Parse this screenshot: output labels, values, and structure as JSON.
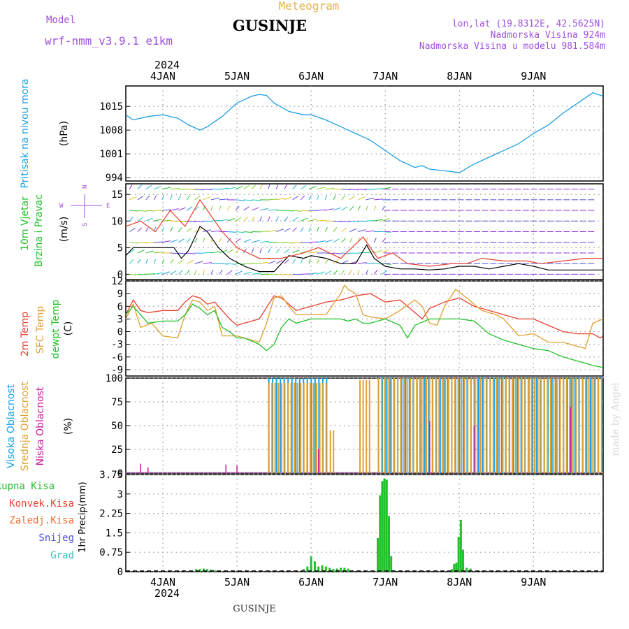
{
  "header": {
    "title": "GUSINJE",
    "meteogram_label": "Meteogram",
    "model_label": "Model",
    "model_name": "wrf-nmm_v3.9.1 e1km",
    "location_line": "lon,lat (19.8312E, 42.5625N)",
    "elevation_line": "Nadmorska Visina 924m",
    "model_elevation_line": "Nadmorska Visina u modelu 981.584m",
    "footer_title": "GUSINJE",
    "watermark": "made by Angel"
  },
  "colors": {
    "pressure": "#1f9fe6",
    "wind_speed": "#000000",
    "gust": "#e8402f",
    "temp2m": "#e8402f",
    "sfc_temp": "#e0a030",
    "dewpoint": "#22c02a",
    "high_cloud": "#1aa0e6",
    "mid_cloud": "#e0a030",
    "low_cloud": "#d01aa0",
    "precip": "#22c02a",
    "label_purple": "#a050e0",
    "label_orange": "#e8b050"
  },
  "chart_data": [
    {
      "panel": "pressure",
      "type": "line",
      "ylabel": "Pritisak na nivou mora",
      "unit": "(hPa)",
      "yticks": [
        994,
        1001,
        1008,
        1015
      ],
      "ylim": [
        993,
        1021
      ],
      "x_unit": "days since 4JAN 00h",
      "x": [
        -0.5,
        -0.4,
        -0.2,
        0,
        0.2,
        0.35,
        0.5,
        0.6,
        0.8,
        1,
        1.2,
        1.3,
        1.4,
        1.5,
        1.7,
        1.9,
        2,
        2.2,
        2.4,
        2.6,
        2.8,
        3,
        3.2,
        3.4,
        3.5,
        3.6,
        3.8,
        4,
        4.2,
        4.4,
        4.6,
        4.8,
        5,
        5.2,
        5.4,
        5.6,
        5.8,
        5.94
      ],
      "y": [
        1012.5,
        1011,
        1012,
        1012.5,
        1011.5,
        1009.5,
        1008,
        1009,
        1012,
        1016,
        1018,
        1018.5,
        1018.2,
        1016,
        1013.5,
        1012.5,
        1012.5,
        1011,
        1009,
        1007,
        1005,
        1002,
        999,
        997,
        997.5,
        996.5,
        996,
        995.5,
        998,
        1000,
        1002,
        1004,
        1007,
        1009.5,
        1013,
        1016,
        1019,
        1018
      ]
    },
    {
      "panel": "wind",
      "type": "line",
      "ylabel": "10m Vjetar Brzina i Pravac",
      "unit": "(m/s)",
      "compass_labels": [
        "N",
        "W",
        "E",
        "S"
      ],
      "yticks": [
        0,
        5,
        10,
        15
      ],
      "ylim": [
        -1,
        17
      ],
      "series": [
        {
          "x": [
            -0.5,
            -0.4,
            -0.3,
            -0.15,
            0,
            0.15,
            0.25,
            0.35,
            0.5,
            0.6,
            0.75,
            0.9,
            1.1,
            1.3,
            1.5,
            1.7,
            1.9,
            2.0,
            2.2,
            2.4,
            2.6,
            2.75,
            2.85,
            3.0,
            3.2,
            3.4,
            3.6,
            3.8,
            4.0,
            4.2,
            4.4,
            4.6,
            4.8,
            5.0,
            5.2,
            5.4,
            5.6,
            5.8,
            5.94
          ],
          "y": [
            3.5,
            5,
            5,
            5,
            5,
            5,
            3,
            4.5,
            9,
            8,
            5,
            3,
            1.5,
            0.5,
            0.5,
            3.5,
            3,
            3.5,
            3,
            2,
            2,
            5.5,
            3,
            1.5,
            1,
            1,
            0.8,
            1,
            1.5,
            1.5,
            1,
            1.5,
            2,
            1.5,
            0.8,
            0.8,
            0.8,
            0.8,
            0.8
          ]
        },
        {
          "x": [
            -0.5,
            -0.3,
            -0.1,
            0.1,
            0.3,
            0.5,
            0.6,
            0.8,
            1.0,
            1.3,
            1.6,
            1.9,
            2.1,
            2.4,
            2.7,
            2.9,
            3.1,
            3.3,
            3.6,
            3.9,
            4.1,
            4.3,
            4.6,
            4.9,
            5.1,
            5.4,
            5.7,
            5.94
          ],
          "y": [
            9,
            10,
            8,
            12,
            9,
            14,
            12,
            8,
            5,
            3,
            3,
            4,
            5,
            3,
            7,
            3,
            4,
            2,
            1.5,
            2,
            2,
            3,
            2.5,
            2.5,
            2,
            2.5,
            3,
            3
          ]
        }
      ]
    },
    {
      "panel": "temperature",
      "type": "line",
      "ylabel_lines": [
        "2m Temp",
        "SFC Temp",
        "dewpt Temp"
      ],
      "unit": "(C)",
      "yticks": [
        -9,
        -6,
        -3,
        0,
        3,
        6,
        9,
        12
      ],
      "ylim": [
        -10.5,
        12
      ],
      "x_unit": "days since 4JAN 00h",
      "series": [
        {
          "name": "2m Temp",
          "x": [
            -0.5,
            -0.4,
            -0.3,
            -0.2,
            0,
            0.2,
            0.3,
            0.4,
            0.5,
            0.6,
            0.7,
            0.8,
            0.9,
            1.0,
            1.1,
            1.3,
            1.5,
            1.6,
            1.7,
            1.8,
            2.0,
            2.2,
            2.4,
            2.6,
            2.8,
            3.0,
            3.2,
            3.4,
            3.5,
            3.6,
            3.8,
            4.0,
            4.2,
            4.4,
            4.6,
            4.8,
            5.0,
            5.2,
            5.4,
            5.6,
            5.8,
            5.9,
            5.94
          ],
          "y": [
            4,
            7.5,
            5,
            4.5,
            5,
            5,
            7,
            8.5,
            8,
            6.5,
            7,
            5,
            3,
            1.5,
            2,
            3,
            8.5,
            8,
            6.5,
            5,
            6,
            7,
            7.5,
            8.5,
            9,
            7,
            7.5,
            4.5,
            3,
            5.5,
            7,
            8,
            6,
            5,
            4,
            3,
            3,
            1.5,
            0,
            -0.5,
            -0.5,
            -1.5,
            -1
          ]
        },
        {
          "name": "SFC Temp",
          "x": [
            -0.5,
            -0.4,
            -0.3,
            -0.15,
            0,
            0.2,
            0.3,
            0.4,
            0.5,
            0.6,
            0.7,
            0.8,
            1.0,
            1.2,
            1.3,
            1.4,
            1.5,
            1.6,
            1.7,
            1.8,
            2.0,
            2.2,
            2.4,
            2.45,
            2.5,
            2.6,
            2.7,
            2.8,
            3.0,
            3.2,
            3.4,
            3.5,
            3.6,
            3.7,
            3.8,
            3.95,
            4.1,
            4.3,
            4.5,
            4.6,
            4.8,
            5.0,
            5.2,
            5.4,
            5.6,
            5.7,
            5.8,
            5.94
          ],
          "y": [
            3,
            6.5,
            1,
            2,
            -1,
            -1.5,
            4,
            7.5,
            7,
            5,
            6,
            -1,
            -1,
            -2,
            -2.5,
            2,
            8,
            8.5,
            6,
            4,
            4,
            4,
            9,
            11,
            10,
            9,
            4,
            3.5,
            3,
            5,
            7.5,
            6,
            2,
            1.5,
            6,
            10,
            8,
            5,
            4,
            3,
            -1,
            -0.5,
            -2.5,
            -2.5,
            -3.5,
            -4,
            2,
            3
          ]
        },
        {
          "name": "dewpt Temp",
          "x": [
            -0.5,
            -0.4,
            -0.2,
            0,
            0.2,
            0.3,
            0.4,
            0.5,
            0.6,
            0.7,
            0.8,
            0.9,
            1.0,
            1.1,
            1.3,
            1.4,
            1.5,
            1.6,
            1.7,
            1.8,
            2.0,
            2.2,
            2.4,
            2.5,
            2.6,
            2.7,
            2.8,
            3.0,
            3.2,
            3.3,
            3.4,
            3.6,
            3.8,
            4.0,
            4.2,
            4.4,
            4.6,
            4.8,
            5.0,
            5.2,
            5.4,
            5.6,
            5.8,
            5.94
          ],
          "y": [
            4,
            6,
            2,
            2.5,
            2.5,
            4,
            6.5,
            5.5,
            4,
            5,
            1,
            0,
            -1.5,
            -1.5,
            -3,
            -4.5,
            -3,
            1,
            3,
            2,
            3,
            3,
            3,
            2.5,
            3,
            2,
            2,
            3,
            1.5,
            -1.5,
            1.5,
            3,
            3,
            3,
            2.5,
            -0.5,
            -2,
            -3,
            -4,
            -4.5,
            -6,
            -7,
            -8,
            -8.5
          ]
        }
      ]
    },
    {
      "panel": "cloud",
      "type": "bar",
      "ylabel_lines": [
        "Visoka Oblacnost",
        "Srednja Oblacnost",
        "Niska Oblacnost"
      ],
      "unit": "(%)",
      "yticks": [
        0,
        25,
        50,
        75,
        100
      ],
      "ylim": [
        0,
        100
      ],
      "x_unit": "days since 4JAN 00h",
      "series": [
        {
          "name": "Visoka Oblacnost",
          "from": 1.42,
          "to": 2.22,
          "value": 100
        },
        {
          "name": "Visoka Oblacnost",
          "from": 2.9,
          "to": 5.94,
          "value": 100
        },
        {
          "name": "Srednja Oblacnost",
          "from": 1.42,
          "to": 2.22,
          "value": 95
        },
        {
          "name": "Srednja Oblacnost",
          "from": 2.25,
          "to": 2.32,
          "value": 45
        },
        {
          "name": "Srednja Oblacnost",
          "from": 2.65,
          "to": 2.78,
          "value": 98
        },
        {
          "name": "Srednja Oblacnost",
          "from": 2.9,
          "to": 5.94,
          "value": 100
        },
        {
          "name": "Niska Oblacnost",
          "at": [
            -0.3,
            -0.2,
            0.85,
            1.0,
            2.1,
            3.6,
            4.2,
            5.5
          ],
          "value": [
            10,
            6,
            9,
            8,
            25,
            55,
            50,
            70
          ]
        }
      ]
    },
    {
      "panel": "precip",
      "type": "bar",
      "ylabel": "1hr Precip",
      "unit": "(mm)",
      "legend": [
        "Ukupna Kisa",
        "Konvek.Kisa",
        "Zaledj.Kisa",
        "Snijeg",
        "Grad"
      ],
      "yticks": [
        0,
        0.75,
        1.5,
        2.25,
        3,
        3.75
      ],
      "ylim": [
        0,
        3.75
      ],
      "x_unit": "days since 4JAN 00h",
      "x": [
        0.45,
        0.5,
        0.55,
        0.6,
        0.65,
        0.7,
        1.9,
        1.95,
        2.0,
        2.05,
        2.1,
        2.15,
        2.2,
        2.25,
        2.3,
        2.35,
        2.4,
        2.45,
        2.5,
        2.55,
        2.9,
        2.93,
        2.96,
        2.99,
        3.02,
        3.05,
        3.08,
        3.11,
        3.14,
        3.17,
        3.9,
        3.93,
        3.96,
        3.99,
        4.02,
        4.05,
        4.1,
        4.15
      ],
      "values": [
        0.1,
        0.1,
        0.12,
        0.1,
        0.08,
        0.05,
        0.1,
        0.2,
        0.6,
        0.4,
        0.2,
        0.25,
        0.2,
        0.15,
        0.1,
        0.12,
        0.15,
        0.15,
        0.12,
        0.05,
        1.3,
        2.95,
        3.5,
        3.6,
        3.55,
        2.15,
        0.6,
        0.05,
        0,
        0,
        0.1,
        0.3,
        0.35,
        1.35,
        2.0,
        0.85,
        0.15,
        0.12
      ]
    }
  ],
  "axes": {
    "date_labels": [
      "4JAN",
      "5JAN",
      "6JAN",
      "7JAN",
      "8JAN",
      "9JAN"
    ],
    "year_label": "2024"
  }
}
